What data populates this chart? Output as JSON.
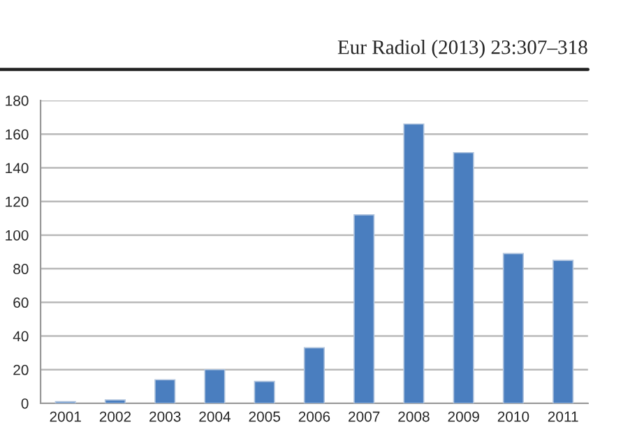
{
  "chart_data": {
    "type": "bar",
    "annotations": [
      "Eur Radiol (2013) 23:307–318"
    ],
    "categories": [
      "2001",
      "2002",
      "2003",
      "2004",
      "2005",
      "2006",
      "2007",
      "2008",
      "2009",
      "2010",
      "2011"
    ],
    "values": [
      1,
      2,
      14,
      20,
      13,
      33,
      112,
      166,
      149,
      89,
      85
    ],
    "color": "#4a7ebf",
    "ylim": [
      0,
      180
    ],
    "yticks": [
      0,
      20,
      40,
      60,
      80,
      100,
      120,
      140,
      160,
      180
    ],
    "grid": "y",
    "legend": false
  }
}
